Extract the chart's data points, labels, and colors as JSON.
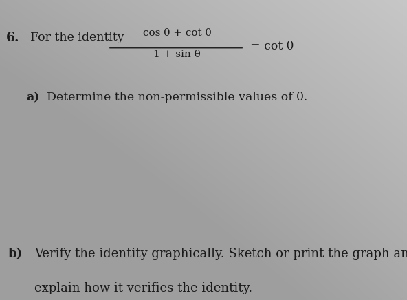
{
  "background_color_top_left": "#b0b0b0",
  "background_color_center": "#d4d4d4",
  "background_color_bottom_right": "#c8c8c8",
  "text_color": "#1a1a1a",
  "question_number": "6.",
  "intro_text": "For the identity",
  "numerator": "cos θ + cot θ",
  "denominator": "1 + sin θ",
  "equals_rhs": "= cot θ",
  "part_a_bold": "a)",
  "part_a_text": "Determine the non-permissible values of θ.",
  "part_b_bold": "b)",
  "part_b_text": "Verify the identity graphically. Sketch or print the graph and",
  "part_b_text2": "explain how it verifies the identity.",
  "figsize": [
    5.92,
    4.36
  ],
  "dpi": 100
}
